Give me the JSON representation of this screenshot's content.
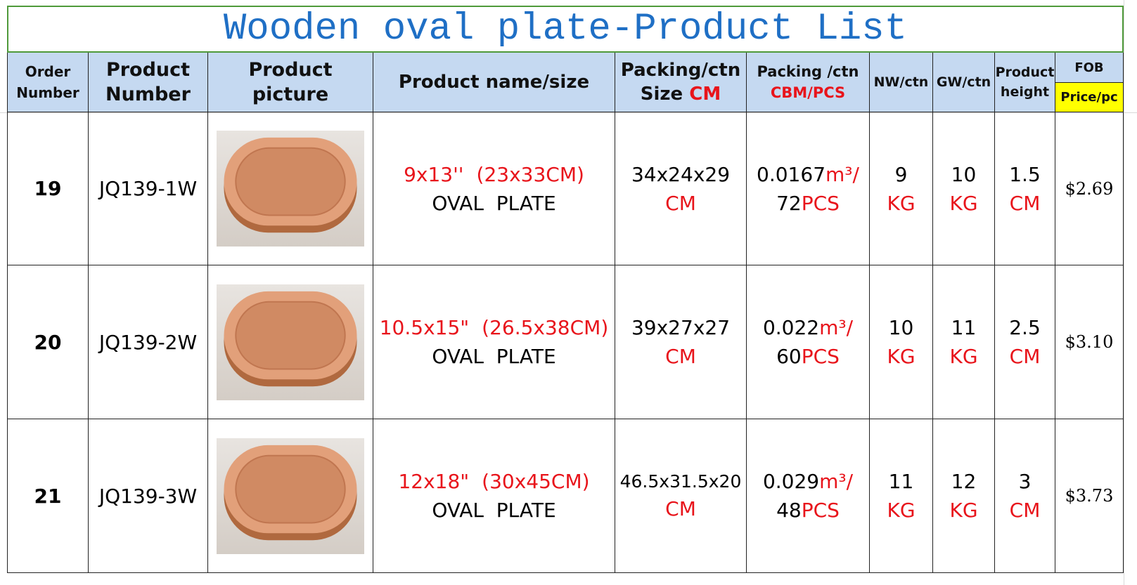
{
  "title": "Wooden oval plate-Product List",
  "header": {
    "order": [
      "Order",
      "Number"
    ],
    "product_number": [
      "Product",
      "Number"
    ],
    "picture": [
      "Product",
      "picture"
    ],
    "name": "Product name/size",
    "packing_size": [
      "Packing/ctn",
      "Size",
      "CM"
    ],
    "packing_cbm": [
      "Packing /ctn",
      "CBM/PCS"
    ],
    "nw": "NW/ctn",
    "gw": "GW/ctn",
    "height": [
      "Product",
      "height"
    ],
    "fob": "FOB",
    "price": "Price/pc"
  },
  "rows": [
    {
      "order": "19",
      "product_number": "JQ139-1W",
      "size_inch": "9x13''",
      "size_cm": "(23x33CM)",
      "name": "OVAL  PLATE",
      "carton": "34x24x29",
      "carton_unit": "CM",
      "cbm": "0.0167",
      "cbm_unit": "m³/",
      "pcs": "72",
      "pcs_unit": "PCS",
      "nw": "9",
      "nw_unit": "KG",
      "gw": "10",
      "gw_unit": "KG",
      "height": "1.5",
      "height_unit": "CM",
      "price": "$2.69"
    },
    {
      "order": "20",
      "product_number": "JQ139-2W",
      "size_inch": "10.5x15\"",
      "size_cm": "(26.5x38CM)",
      "name": "OVAL  PLATE",
      "carton": "39x27x27",
      "carton_unit": "CM",
      "cbm": "0.022",
      "cbm_unit": "m³/",
      "pcs": "60",
      "pcs_unit": "PCS",
      "nw": "10",
      "nw_unit": "KG",
      "gw": "11",
      "gw_unit": "KG",
      "height": "2.5",
      "height_unit": "CM",
      "price": "$3.10"
    },
    {
      "order": "21",
      "product_number": "JQ139-3W",
      "size_inch": "12x18\"",
      "size_cm": "(30x45CM)",
      "name": "OVAL  PLATE",
      "carton": "46.5x31.5x20",
      "carton_unit": "CM",
      "cbm": "0.029",
      "cbm_unit": "m³/",
      "pcs": "48",
      "pcs_unit": "PCS",
      "nw": "11",
      "nw_unit": "KG",
      "gw": "12",
      "gw_unit": "KG",
      "height": "3",
      "height_unit": "CM",
      "price": "$3.73"
    }
  ]
}
